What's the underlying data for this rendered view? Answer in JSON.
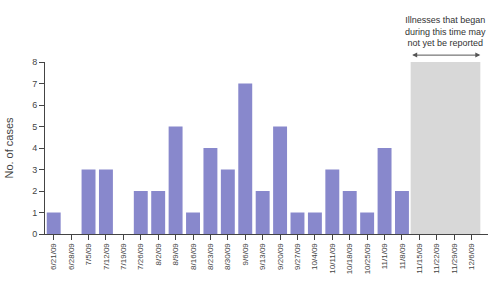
{
  "chart_data": {
    "type": "bar",
    "categories": [
      "6/21/09",
      "6/28/09",
      "7/5/09",
      "7/12/09",
      "7/19/09",
      "7/26/09",
      "8/2/09",
      "8/9/09",
      "8/16/09",
      "8/23/09",
      "8/30/09",
      "9/6/09",
      "9/13/09",
      "9/20/09",
      "9/27/09",
      "10/4/09",
      "10/11/09",
      "10/18/09",
      "10/25/09",
      "11/1/09",
      "11/8/09",
      "11/15/09",
      "11/22/09",
      "11/29/09",
      "12/6/09"
    ],
    "values": [
      1,
      0,
      3,
      3,
      0,
      2,
      2,
      5,
      1,
      4,
      3,
      7,
      2,
      5,
      1,
      1,
      3,
      2,
      1,
      4,
      2,
      0,
      0,
      0,
      0
    ],
    "color": "#8888cc",
    "ylabel": "No. of cases",
    "ylim": [
      0,
      8
    ],
    "yticks": [
      0,
      1,
      2,
      3,
      4,
      5,
      6,
      7,
      8
    ],
    "grid": false,
    "annotations": [
      {
        "text": "Illnesses that began\nduring this time may\nnot yet be reported",
        "x_start": "11/15/09",
        "x_end": "12/6/09",
        "color": "#d8d8d8"
      }
    ]
  }
}
